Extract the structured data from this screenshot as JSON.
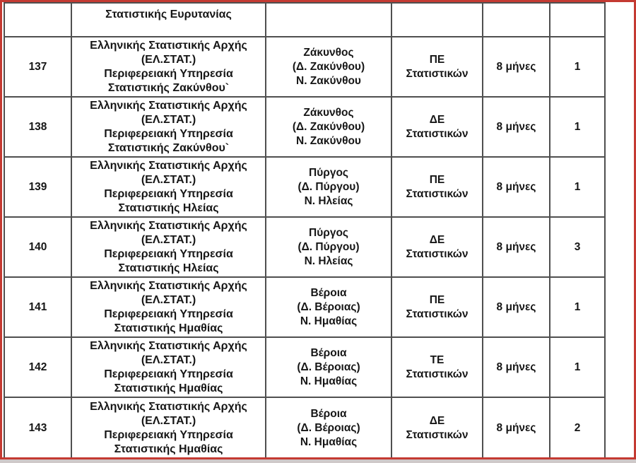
{
  "colors": {
    "frame_red": "#c43a32",
    "grid_gray": "#4f4f4f",
    "text_ink": "#161616"
  },
  "table": {
    "partial_row": {
      "org_text": "Στατιστικής Ευρυτανίας"
    },
    "rows": [
      {
        "num": "137",
        "org": [
          "Ελληνικής Στατιστικής Αρχής",
          "(ΕΛ.ΣΤΑΤ.)",
          "Περιφερειακή Υπηρεσία",
          "Στατιστικής Ζακύνθου`"
        ],
        "location": [
          "Ζάκυνθος",
          "(Δ. Ζακύνθου)",
          "Ν. Ζακύνθου"
        ],
        "category": [
          "ΠΕ",
          "Στατιστικών"
        ],
        "duration": "8 μήνες",
        "count": "1"
      },
      {
        "num": "138",
        "org": [
          "Ελληνικής Στατιστικής Αρχής",
          "(ΕΛ.ΣΤΑΤ.)",
          "Περιφερειακή Υπηρεσία",
          "Στατιστικής Ζακύνθου`"
        ],
        "location": [
          "Ζάκυνθος",
          "(Δ. Ζακύνθου)",
          "Ν. Ζακύνθου"
        ],
        "category": [
          "ΔΕ",
          "Στατιστικών"
        ],
        "duration": "8 μήνες",
        "count": "1"
      },
      {
        "num": "139",
        "org": [
          "Ελληνικής Στατιστικής Αρχής",
          "(ΕΛ.ΣΤΑΤ.)",
          "Περιφερειακή Υπηρεσία",
          "Στατιστικής Ηλείας"
        ],
        "location": [
          "Πύργος",
          "(Δ. Πύργου)",
          "Ν. Ηλείας"
        ],
        "category": [
          "ΠΕ",
          "Στατιστικών"
        ],
        "duration": "8 μήνες",
        "count": "1"
      },
      {
        "num": "140",
        "org": [
          "Ελληνικής Στατιστικής Αρχής",
          "(ΕΛ.ΣΤΑΤ.)",
          "Περιφερειακή Υπηρεσία",
          "Στατιστικής Ηλείας"
        ],
        "location": [
          "Πύργος",
          "(Δ. Πύργου)",
          "Ν. Ηλείας"
        ],
        "category": [
          "ΔΕ",
          "Στατιστικών"
        ],
        "duration": "8 μήνες",
        "count": "3"
      },
      {
        "num": "141",
        "org": [
          "Ελληνικής Στατιστικής Αρχής",
          "(ΕΛ.ΣΤΑΤ.)",
          "Περιφερειακή Υπηρεσία",
          "Στατιστικής Ημαθίας"
        ],
        "location": [
          "Βέροια",
          "(Δ. Βέροιας)",
          "Ν. Ημαθίας"
        ],
        "category": [
          "ΠΕ",
          "Στατιστικών"
        ],
        "duration": "8 μήνες",
        "count": "1"
      },
      {
        "num": "142",
        "org": [
          "Ελληνικής Στατιστικής Αρχής",
          "(ΕΛ.ΣΤΑΤ.)",
          "Περιφερειακή Υπηρεσία",
          "Στατιστικής Ημαθίας"
        ],
        "location": [
          "Βέροια",
          "(Δ. Βέροιας)",
          "Ν. Ημαθίας"
        ],
        "category": [
          "ΤΕ",
          "Στατιστικών"
        ],
        "duration": "8 μήνες",
        "count": "1"
      },
      {
        "num": "143",
        "org": [
          "Ελληνικής Στατιστικής Αρχής",
          "(ΕΛ.ΣΤΑΤ.)",
          "Περιφερειακή Υπηρεσία",
          "Στατιστικής Ημαθίας"
        ],
        "location": [
          "Βέροια",
          "(Δ. Βέροιας)",
          "Ν. Ημαθίας"
        ],
        "category": [
          "ΔΕ",
          "Στατιστικών"
        ],
        "duration": "8 μήνες",
        "count": "2"
      }
    ]
  }
}
